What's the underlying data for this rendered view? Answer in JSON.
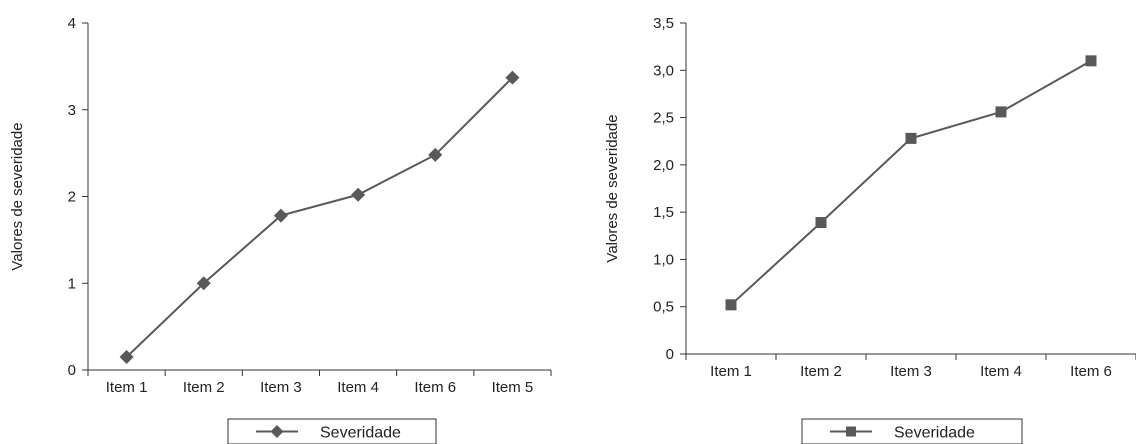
{
  "chart_data": [
    {
      "type": "line",
      "title": "",
      "xlabel": "",
      "ylabel": "Valores de severidade",
      "categories": [
        "Item 1",
        "Item 2",
        "Item 3",
        "Item 4",
        "Item 6",
        "Item 5"
      ],
      "series": [
        {
          "name": "Severidade",
          "values": [
            0.15,
            1.0,
            1.78,
            2.02,
            2.48,
            3.37
          ],
          "color": "#595959",
          "marker": "diamond"
        }
      ],
      "yticks": [
        "0",
        "1",
        "2",
        "3",
        "4"
      ],
      "ylim": [
        0,
        4
      ],
      "grid": false,
      "legend": "bottom"
    },
    {
      "type": "line",
      "title": "",
      "xlabel": "",
      "ylabel": "Valores de severidade",
      "categories": [
        "Item 1",
        "Item 2",
        "Item 3",
        "Item 4",
        "Item 6"
      ],
      "series": [
        {
          "name": "Severidade",
          "values": [
            0.52,
            1.39,
            2.28,
            2.56,
            3.1
          ],
          "color": "#595959",
          "marker": "square"
        }
      ],
      "yticks": [
        "0",
        "0,5",
        "1,0",
        "1,5",
        "2,0",
        "2,5",
        "3,0",
        "3,5"
      ],
      "ylim": [
        0,
        3.5
      ],
      "grid": false,
      "legend": "bottom"
    }
  ]
}
